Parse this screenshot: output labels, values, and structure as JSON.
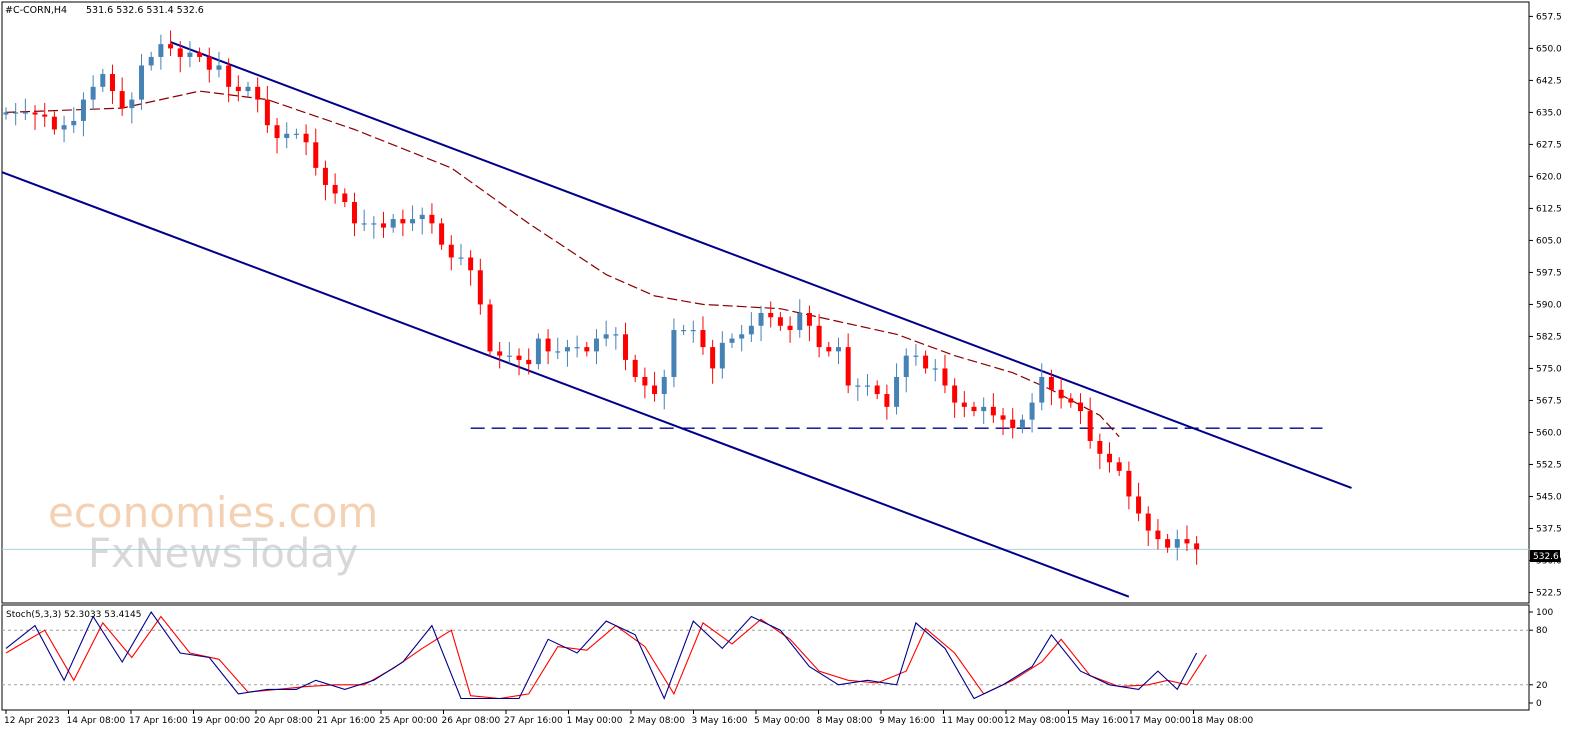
{
  "window": {
    "header_symbol": "#C-CORN,H4",
    "header_ohlc": "531.6 532.6 531.4 532.6"
  },
  "watermark": {
    "line1": "economies.com",
    "line2": "FxNewsToday"
  },
  "colors": {
    "bull": "#4682b4",
    "bear": "#ff0000",
    "channel": "#00008b",
    "ma": "#8b0000",
    "support": "#00008b",
    "stoch_main": "#00008b",
    "stoch_signal": "#ff0000",
    "price_line": "#a8d0e0"
  },
  "price_axis": {
    "ticks": [
      "657.5",
      "650.0",
      "642.5",
      "635.0",
      "627.5",
      "620.0",
      "612.5",
      "605.0",
      "597.5",
      "590.0",
      "582.5",
      "575.0",
      "567.5",
      "560.0",
      "552.5",
      "545.0",
      "537.5",
      "530.0",
      "522.5"
    ],
    "current": "532.6"
  },
  "time_axis": {
    "labels": [
      "12 Apr 2023",
      "14 Apr 08:00",
      "17 Apr 16:00",
      "19 Apr 00:00",
      "20 Apr 08:00",
      "21 Apr 16:00",
      "25 Apr 00:00",
      "26 Apr 08:00",
      "27 Apr 16:00",
      "1 May 00:00",
      "2 May 08:00",
      "3 May 16:00",
      "5 May 00:00",
      "8 May 08:00",
      "9 May 16:00",
      "11 May 00:00",
      "12 May 08:00",
      "15 May 16:00",
      "17 May 00:00",
      "18 May 08:00"
    ]
  },
  "stoch": {
    "label": "Stoch(5,3,3) 52.3033 53.4145",
    "ticks": [
      "100",
      "80",
      "20",
      "0"
    ],
    "levels": [
      80,
      20
    ]
  },
  "chart_data": {
    "type": "candlestick",
    "symbol": "#C-CORN",
    "timeframe": "H4",
    "ylim": [
      520.5,
      659
    ],
    "x": [
      "12 Apr 2023",
      "14 Apr 08:00",
      "17 Apr 16:00",
      "19 Apr 00:00",
      "20 Apr 08:00",
      "21 Apr 16:00",
      "25 Apr 00:00",
      "26 Apr 08:00",
      "27 Apr 16:00",
      "1 May 00:00",
      "2 May 08:00",
      "3 May 16:00",
      "5 May 00:00",
      "8 May 08:00",
      "9 May 16:00",
      "11 May 00:00",
      "12 May 08:00",
      "15 May 16:00",
      "17 May 00:00",
      "18 May 08:00"
    ],
    "close_path": [
      [
        0,
        635
      ],
      [
        2,
        635
      ],
      [
        4,
        634
      ],
      [
        5,
        631
      ],
      [
        7,
        633
      ],
      [
        8,
        638
      ],
      [
        9,
        641
      ],
      [
        10,
        644
      ],
      [
        11,
        640
      ],
      [
        12,
        636
      ],
      [
        13,
        638
      ],
      [
        14,
        646
      ],
      [
        15,
        648
      ],
      [
        16,
        651
      ],
      [
        17,
        650
      ],
      [
        18,
        648
      ],
      [
        19,
        649
      ],
      [
        20,
        648
      ],
      [
        21,
        645
      ],
      [
        22,
        646
      ],
      [
        23,
        641
      ],
      [
        24,
        640
      ],
      [
        25,
        641
      ],
      [
        26,
        638
      ],
      [
        27,
        632
      ],
      [
        28,
        629
      ],
      [
        29,
        630
      ],
      [
        30,
        630
      ],
      [
        31,
        628
      ],
      [
        32,
        622
      ],
      [
        33,
        618
      ],
      [
        34,
        616
      ],
      [
        35,
        614
      ],
      [
        36,
        609
      ],
      [
        37,
        609
      ],
      [
        38,
        609
      ],
      [
        39,
        608
      ],
      [
        40,
        610
      ],
      [
        41,
        609
      ],
      [
        42,
        610
      ],
      [
        43,
        611
      ],
      [
        44,
        609
      ],
      [
        45,
        604
      ],
      [
        46,
        601
      ],
      [
        47,
        601
      ],
      [
        48,
        598
      ],
      [
        49,
        590
      ],
      [
        50,
        579
      ],
      [
        51,
        578
      ],
      [
        52,
        578
      ],
      [
        53,
        577
      ],
      [
        54,
        576
      ],
      [
        55,
        582
      ],
      [
        56,
        579
      ],
      [
        57,
        579
      ],
      [
        58,
        580
      ],
      [
        59,
        580
      ],
      [
        60,
        579
      ],
      [
        61,
        582
      ],
      [
        62,
        583
      ],
      [
        63,
        583
      ],
      [
        64,
        577
      ],
      [
        65,
        573
      ],
      [
        66,
        571
      ],
      [
        67,
        569
      ],
      [
        68,
        573
      ],
      [
        69,
        584
      ],
      [
        70,
        584
      ],
      [
        71,
        584
      ],
      [
        72,
        580
      ],
      [
        73,
        575
      ],
      [
        74,
        581
      ],
      [
        75,
        582
      ],
      [
        76,
        583
      ],
      [
        77,
        585
      ],
      [
        78,
        588
      ],
      [
        79,
        587
      ],
      [
        80,
        585
      ],
      [
        81,
        584
      ],
      [
        82,
        588
      ],
      [
        83,
        585
      ],
      [
        84,
        580
      ],
      [
        85,
        579
      ],
      [
        86,
        580
      ],
      [
        87,
        571
      ],
      [
        88,
        571
      ],
      [
        89,
        571
      ],
      [
        90,
        569
      ],
      [
        91,
        566
      ],
      [
        92,
        573
      ],
      [
        93,
        578
      ],
      [
        94,
        578
      ],
      [
        95,
        575
      ],
      [
        96,
        575
      ],
      [
        97,
        571
      ],
      [
        98,
        567
      ],
      [
        99,
        566
      ],
      [
        100,
        565
      ],
      [
        101,
        566
      ],
      [
        102,
        564
      ],
      [
        103,
        563
      ],
      [
        104,
        561
      ],
      [
        105,
        563
      ],
      [
        106,
        567
      ],
      [
        107,
        573
      ],
      [
        108,
        570
      ],
      [
        109,
        568
      ],
      [
        110,
        567
      ],
      [
        111,
        565
      ],
      [
        112,
        558
      ],
      [
        113,
        555
      ],
      [
        114,
        553
      ],
      [
        115,
        551
      ],
      [
        116,
        545
      ],
      [
        117,
        541
      ],
      [
        118,
        537
      ],
      [
        119,
        535
      ],
      [
        120,
        533
      ],
      [
        121,
        535
      ],
      [
        122,
        534
      ],
      [
        123,
        532.6
      ]
    ],
    "overlays": {
      "moving_average_path": [
        [
          0,
          635
        ],
        [
          12,
          636
        ],
        [
          20,
          640
        ],
        [
          27,
          638
        ],
        [
          36,
          631
        ],
        [
          46,
          622
        ],
        [
          54,
          609
        ],
        [
          62,
          597
        ],
        [
          67,
          592
        ],
        [
          72,
          590
        ],
        [
          80,
          589
        ],
        [
          86,
          586
        ],
        [
          92,
          583
        ],
        [
          98,
          578
        ],
        [
          104,
          574
        ],
        [
          108,
          570
        ],
        [
          113,
          564
        ],
        [
          115,
          559
        ]
      ],
      "upper_channel": [
        [
          17,
          651.5
        ],
        [
          139,
          547
        ]
      ],
      "lower_channel": [
        [
          0,
          621
        ],
        [
          116,
          521.5
        ]
      ],
      "support_level": {
        "price": 561,
        "from": 48,
        "to": 136
      }
    },
    "stochastic": {
      "params": "5,3,3",
      "main": 52.3033,
      "signal": 53.4145,
      "main_path": [
        [
          0,
          60
        ],
        [
          3,
          85
        ],
        [
          6,
          25
        ],
        [
          9,
          95
        ],
        [
          12,
          45
        ],
        [
          15,
          100
        ],
        [
          18,
          55
        ],
        [
          21,
          50
        ],
        [
          24,
          10
        ],
        [
          27,
          15
        ],
        [
          30,
          15
        ],
        [
          32,
          25
        ],
        [
          35,
          15
        ],
        [
          38,
          25
        ],
        [
          41,
          45
        ],
        [
          44,
          85
        ],
        [
          47,
          5
        ],
        [
          50,
          5
        ],
        [
          53,
          5
        ],
        [
          56,
          70
        ],
        [
          59,
          55
        ],
        [
          62,
          90
        ],
        [
          65,
          75
        ],
        [
          68,
          5
        ],
        [
          71,
          90
        ],
        [
          74,
          60
        ],
        [
          77,
          95
        ],
        [
          80,
          80
        ],
        [
          83,
          40
        ],
        [
          86,
          20
        ],
        [
          89,
          25
        ],
        [
          92,
          20
        ],
        [
          94,
          88
        ],
        [
          97,
          60
        ],
        [
          100,
          5
        ],
        [
          103,
          20
        ],
        [
          106,
          40
        ],
        [
          108,
          75
        ],
        [
          111,
          35
        ],
        [
          114,
          20
        ],
        [
          117,
          15
        ],
        [
          119,
          35
        ],
        [
          121,
          15
        ],
        [
          123,
          55
        ]
      ],
      "signal_path": [
        [
          0,
          55
        ],
        [
          4,
          80
        ],
        [
          7,
          25
        ],
        [
          10,
          88
        ],
        [
          13,
          50
        ],
        [
          16,
          95
        ],
        [
          19,
          55
        ],
        [
          22,
          48
        ],
        [
          25,
          12
        ],
        [
          28,
          15
        ],
        [
          31,
          18
        ],
        [
          34,
          20
        ],
        [
          37,
          20
        ],
        [
          40,
          38
        ],
        [
          43,
          60
        ],
        [
          46,
          80
        ],
        [
          48,
          8
        ],
        [
          51,
          5
        ],
        [
          54,
          10
        ],
        [
          57,
          62
        ],
        [
          60,
          58
        ],
        [
          63,
          85
        ],
        [
          66,
          62
        ],
        [
          69,
          10
        ],
        [
          72,
          88
        ],
        [
          75,
          65
        ],
        [
          78,
          92
        ],
        [
          81,
          70
        ],
        [
          84,
          35
        ],
        [
          87,
          25
        ],
        [
          90,
          22
        ],
        [
          93,
          35
        ],
        [
          95,
          82
        ],
        [
          98,
          55
        ],
        [
          101,
          10
        ],
        [
          104,
          25
        ],
        [
          107,
          45
        ],
        [
          109,
          70
        ],
        [
          112,
          30
        ],
        [
          115,
          18
        ],
        [
          118,
          20
        ],
        [
          120,
          25
        ],
        [
          122,
          20
        ],
        [
          124,
          53
        ]
      ]
    }
  }
}
